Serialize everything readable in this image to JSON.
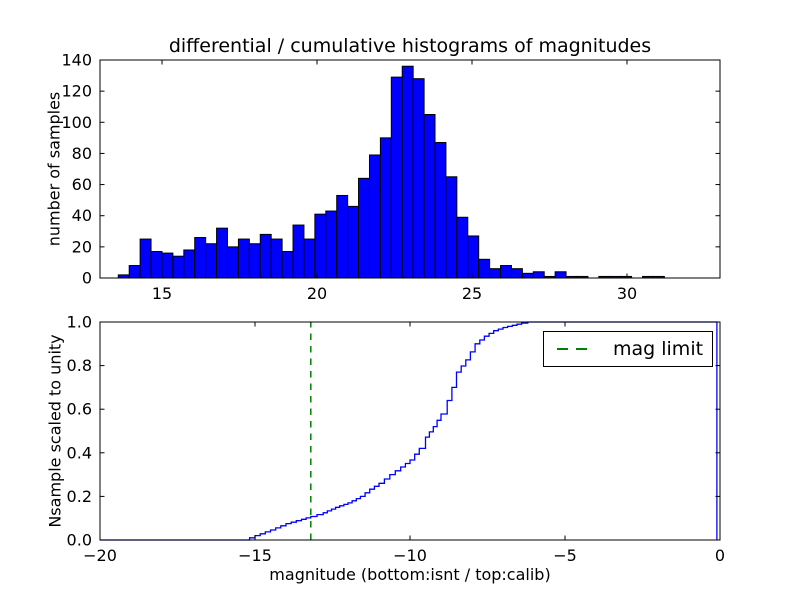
{
  "chart_data": [
    {
      "type": "bar",
      "subplot": "top",
      "title": "differential / cumulative histograms of magnitudes",
      "xlabel": "",
      "ylabel": "number of samples",
      "xlim": [
        13,
        33
      ],
      "ylim": [
        0,
        140
      ],
      "xticks": [
        15,
        20,
        25,
        30
      ],
      "xtick_labels": [
        "15",
        "20",
        "25",
        "30"
      ],
      "yticks": [
        0,
        20,
        40,
        60,
        80,
        100,
        120,
        140
      ],
      "ytick_labels": [
        "0",
        "20",
        "40",
        "60",
        "80",
        "100",
        "120",
        "140"
      ],
      "grid": false,
      "bar_color": "#0000ff",
      "bar_edge_color": "#000000",
      "bin_start": 13.59,
      "bin_width": 0.3523,
      "counts": [
        2,
        8,
        25,
        17,
        16,
        14,
        18,
        26,
        22,
        32,
        20,
        25,
        22,
        28,
        25,
        17,
        34,
        25,
        41,
        43,
        53,
        46,
        64,
        79,
        90,
        129,
        136,
        128,
        105,
        87,
        65,
        39,
        27,
        12,
        6,
        8,
        6,
        3,
        4,
        1,
        4,
        1,
        1,
        0,
        1,
        1,
        1,
        0,
        1,
        1
      ]
    },
    {
      "type": "line",
      "subplot": "bottom",
      "style": "cumulative-step",
      "xlabel": "magnitude (bottom:isnt / top:calib)",
      "ylabel": "Nsample scaled to unity",
      "xlim": [
        -20,
        0
      ],
      "ylim": [
        0.0,
        1.0
      ],
      "xticks": [
        -20,
        -15,
        -10,
        -5,
        0
      ],
      "xtick_labels": [
        "−20",
        "−15",
        "−10",
        "−5",
        "0"
      ],
      "yticks": [
        0.0,
        0.2,
        0.4,
        0.6,
        0.8,
        1.0
      ],
      "ytick_labels": [
        "0.0",
        "0.2",
        "0.4",
        "0.6",
        "0.8",
        "1.0"
      ],
      "grid": false,
      "line_color": "#0000ff",
      "cdf_points": [
        [
          -20,
          0
        ],
        [
          -15.35,
          0
        ],
        [
          -15.0,
          0.02
        ],
        [
          -14.5,
          0.046
        ],
        [
          -14.0,
          0.075
        ],
        [
          -13.5,
          0.095
        ],
        [
          -13.2,
          0.108
        ],
        [
          -12.8,
          0.125
        ],
        [
          -12.4,
          0.15
        ],
        [
          -12.0,
          0.17
        ],
        [
          -11.6,
          0.2
        ],
        [
          -11.3,
          0.233
        ],
        [
          -11.0,
          0.26
        ],
        [
          -10.65,
          0.3
        ],
        [
          -10.3,
          0.335
        ],
        [
          -10.0,
          0.367
        ],
        [
          -9.7,
          0.42
        ],
        [
          -9.5,
          0.472
        ],
        [
          -9.25,
          0.52
        ],
        [
          -9.0,
          0.578
        ],
        [
          -8.8,
          0.64
        ],
        [
          -8.65,
          0.7
        ],
        [
          -8.5,
          0.77
        ],
        [
          -8.2,
          0.826
        ],
        [
          -7.9,
          0.9
        ],
        [
          -7.6,
          0.935
        ],
        [
          -7.3,
          0.96
        ],
        [
          -7.0,
          0.975
        ],
        [
          -6.7,
          0.985
        ],
        [
          -6.4,
          0.995
        ],
        [
          -6.2,
          1.0
        ],
        [
          -0.1,
          1.0
        ]
      ],
      "cdf_end_drop_x": -0.1,
      "vline": {
        "x": -13.2,
        "color": "#008000",
        "style": "dashed",
        "label": "mag limit"
      },
      "legend": {
        "label": "mag limit",
        "position": "upper right"
      }
    }
  ]
}
